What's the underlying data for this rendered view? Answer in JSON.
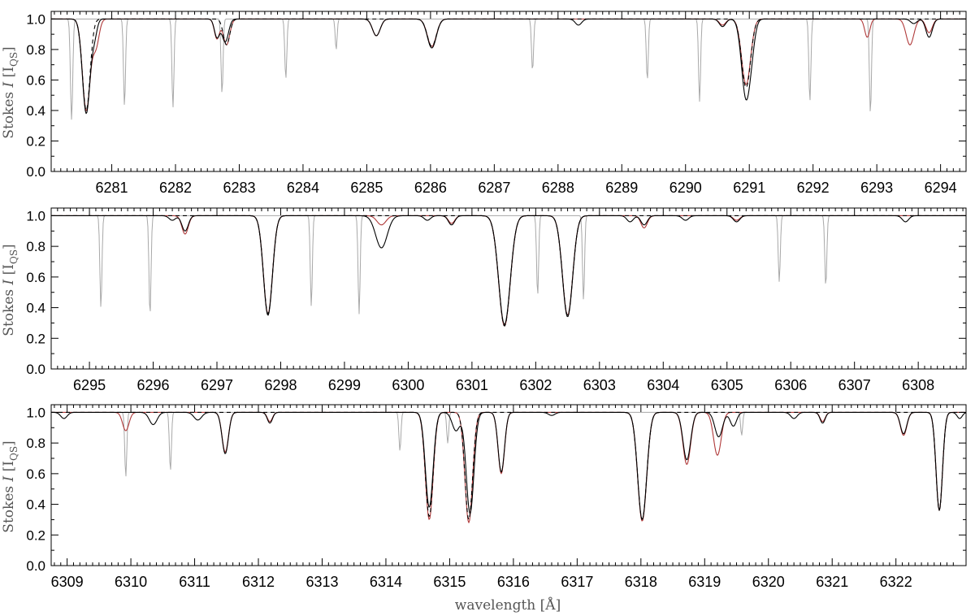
{
  "figure": {
    "xlabel": "wavelength [Å]",
    "ylabel_prefix": "Stokes ",
    "ylabel_italic": "I",
    "ylabel_suffix": " [I",
    "ylabel_sub": "QS",
    "ylabel_close": "]"
  },
  "chart_data": [
    {
      "type": "line",
      "title": "",
      "xlim": [
        6280.05,
        6294.4
      ],
      "ylim": [
        0.0,
        1.05
      ],
      "grid": false,
      "yticks": [
        "0.0",
        "0.2",
        "0.4",
        "0.6",
        "0.8",
        "1.0"
      ],
      "xticks": [
        "6281",
        "6282",
        "6283",
        "6284",
        "6285",
        "6286",
        "6287",
        "6288",
        "6289",
        "6290",
        "6291",
        "6292",
        "6293",
        "6294"
      ],
      "series": [
        {
          "color": "#000000",
          "width": 1.1,
          "dash": "",
          "lines": [
            [
              6280.6,
              0.62,
              0.06
            ],
            [
              6280.73,
              0.1,
              0.04
            ],
            [
              6282.65,
              0.12,
              0.04
            ],
            [
              6282.78,
              0.15,
              0.05
            ],
            [
              6285.15,
              0.11,
              0.06
            ],
            [
              6286.02,
              0.19,
              0.07
            ],
            [
              6288.32,
              0.04,
              0.05
            ],
            [
              6290.58,
              0.05,
              0.05
            ],
            [
              6290.95,
              0.52,
              0.07
            ],
            [
              6291.05,
              0.08,
              0.05
            ],
            [
              6293.58,
              0.03,
              0.05
            ],
            [
              6293.82,
              0.12,
              0.05
            ]
          ]
        },
        {
          "color": "#b03a3a",
          "width": 1.1,
          "dash": "",
          "lines": [
            [
              6280.6,
              0.6,
              0.06
            ],
            [
              6280.75,
              0.18,
              0.05
            ],
            [
              6282.65,
              0.13,
              0.04
            ],
            [
              6282.8,
              0.17,
              0.05
            ],
            [
              6285.15,
              0.11,
              0.06
            ],
            [
              6286.02,
              0.18,
              0.07
            ],
            [
              6290.58,
              0.04,
              0.05
            ],
            [
              6290.95,
              0.43,
              0.07
            ],
            [
              6292.85,
              0.12,
              0.04
            ],
            [
              6293.52,
              0.17,
              0.06
            ],
            [
              6293.82,
              0.09,
              0.05
            ]
          ]
        },
        {
          "color": "#000000",
          "width": 1.1,
          "dash": "5,4",
          "lines": [
            [
              6280.6,
              0.6,
              0.06
            ],
            [
              6282.8,
              0.17,
              0.05
            ],
            [
              6286.02,
              0.18,
              0.07
            ],
            [
              6290.95,
              0.45,
              0.07
            ]
          ]
        },
        {
          "color": "#a8a8a8",
          "width": 1.0,
          "dash": "",
          "lines": [
            [
              6280.37,
              0.66,
              0.018
            ],
            [
              6281.2,
              0.57,
              0.016
            ],
            [
              6281.96,
              0.58,
              0.016
            ],
            [
              6282.73,
              0.49,
              0.016
            ],
            [
              6283.73,
              0.39,
              0.016
            ],
            [
              6284.52,
              0.2,
              0.015
            ],
            [
              6287.6,
              0.34,
              0.016
            ],
            [
              6289.4,
              0.4,
              0.016
            ],
            [
              6290.22,
              0.54,
              0.016
            ],
            [
              6291.95,
              0.54,
              0.016
            ],
            [
              6292.9,
              0.62,
              0.016
            ]
          ]
        }
      ]
    },
    {
      "type": "line",
      "title": "",
      "xlim": [
        6294.4,
        6308.75
      ],
      "ylim": [
        0.0,
        1.05
      ],
      "grid": false,
      "yticks": [
        "0.0",
        "0.2",
        "0.4",
        "0.6",
        "0.8",
        "1.0"
      ],
      "xticks": [
        "6295",
        "6296",
        "6297",
        "6298",
        "6299",
        "6300",
        "6301",
        "6302",
        "6303",
        "6304",
        "6305",
        "6306",
        "6307",
        "6308"
      ],
      "series": [
        {
          "color": "#000000",
          "width": 1.1,
          "dash": "",
          "lines": [
            [
              6296.3,
              0.03,
              0.05
            ],
            [
              6296.5,
              0.1,
              0.05
            ],
            [
              6297.8,
              0.65,
              0.07
            ],
            [
              6299.58,
              0.21,
              0.09
            ],
            [
              6300.3,
              0.03,
              0.05
            ],
            [
              6300.68,
              0.06,
              0.05
            ],
            [
              6301.51,
              0.71,
              0.09
            ],
            [
              6302.5,
              0.66,
              0.08
            ],
            [
              6303.48,
              0.04,
              0.05
            ],
            [
              6303.7,
              0.06,
              0.05
            ],
            [
              6304.35,
              0.03,
              0.05
            ],
            [
              6305.15,
              0.04,
              0.05
            ],
            [
              6307.8,
              0.04,
              0.05
            ]
          ]
        },
        {
          "color": "#b03a3a",
          "width": 1.1,
          "dash": "",
          "lines": [
            [
              6296.5,
              0.12,
              0.05
            ],
            [
              6297.8,
              0.64,
              0.07
            ],
            [
              6299.58,
              0.06,
              0.07
            ],
            [
              6300.68,
              0.05,
              0.05
            ],
            [
              6301.51,
              0.72,
              0.09
            ],
            [
              6302.5,
              0.65,
              0.08
            ],
            [
              6303.7,
              0.08,
              0.05
            ],
            [
              6305.15,
              0.03,
              0.05
            ]
          ]
        },
        {
          "color": "#000000",
          "width": 1.1,
          "dash": "5,4",
          "lines": [
            [
              6297.8,
              0.64,
              0.07
            ],
            [
              6301.51,
              0.72,
              0.09
            ],
            [
              6302.5,
              0.65,
              0.08
            ]
          ]
        },
        {
          "color": "#a8a8a8",
          "width": 1.0,
          "dash": "",
          "lines": [
            [
              6295.18,
              0.6,
              0.016
            ],
            [
              6295.95,
              0.65,
              0.016
            ],
            [
              6298.48,
              0.59,
              0.016
            ],
            [
              6299.23,
              0.64,
              0.016
            ],
            [
              6302.03,
              0.52,
              0.016
            ],
            [
              6302.75,
              0.55,
              0.016
            ],
            [
              6305.82,
              0.43,
              0.016
            ],
            [
              6306.55,
              0.46,
              0.016
            ]
          ]
        }
      ]
    },
    {
      "type": "line",
      "title": "",
      "xlim": [
        6308.75,
        6323.1
      ],
      "ylim": [
        0.0,
        1.05
      ],
      "grid": false,
      "yticks": [
        "0.0",
        "0.2",
        "0.4",
        "0.6",
        "0.8",
        "1.0"
      ],
      "xticks": [
        "6309",
        "6310",
        "6311",
        "6312",
        "6313",
        "6314",
        "6315",
        "6316",
        "6317",
        "6318",
        "6319",
        "6320",
        "6321",
        "6322"
      ],
      "series": [
        {
          "color": "#000000",
          "width": 1.1,
          "dash": "",
          "lines": [
            [
              6308.95,
              0.04,
              0.05
            ],
            [
              6310.35,
              0.08,
              0.06
            ],
            [
              6311.05,
              0.05,
              0.06
            ],
            [
              6311.48,
              0.27,
              0.05
            ],
            [
              6312.18,
              0.07,
              0.04
            ],
            [
              6314.68,
              0.62,
              0.06
            ],
            [
              6315.32,
              0.66,
              0.06
            ],
            [
              6315.1,
              0.12,
              0.06
            ],
            [
              6315.81,
              0.39,
              0.05
            ],
            [
              6316.6,
              0.02,
              0.05
            ],
            [
              6318.02,
              0.7,
              0.07
            ],
            [
              6318.72,
              0.31,
              0.06
            ],
            [
              6319.22,
              0.16,
              0.06
            ],
            [
              6319.45,
              0.09,
              0.05
            ],
            [
              6320.4,
              0.04,
              0.05
            ],
            [
              6320.85,
              0.07,
              0.04
            ],
            [
              6322.12,
              0.14,
              0.05
            ],
            [
              6322.68,
              0.64,
              0.05
            ],
            [
              6323.0,
              0.04,
              0.04
            ]
          ]
        },
        {
          "color": "#b03a3a",
          "width": 1.1,
          "dash": "",
          "lines": [
            [
              6309.92,
              0.12,
              0.05
            ],
            [
              6311.48,
              0.26,
              0.05
            ],
            [
              6312.18,
              0.06,
              0.04
            ],
            [
              6314.68,
              0.7,
              0.06
            ],
            [
              6315.3,
              0.72,
              0.06
            ],
            [
              6315.81,
              0.4,
              0.05
            ],
            [
              6318.02,
              0.71,
              0.07
            ],
            [
              6318.72,
              0.34,
              0.06
            ],
            [
              6319.2,
              0.28,
              0.06
            ],
            [
              6320.85,
              0.06,
              0.04
            ],
            [
              6322.12,
              0.15,
              0.05
            ],
            [
              6322.68,
              0.64,
              0.05
            ]
          ]
        },
        {
          "color": "#000000",
          "width": 1.1,
          "dash": "5,4",
          "lines": [
            [
              6314.68,
              0.68,
              0.06
            ],
            [
              6315.3,
              0.7,
              0.06
            ],
            [
              6318.02,
              0.7,
              0.07
            ],
            [
              6322.68,
              0.64,
              0.05
            ]
          ]
        },
        {
          "color": "#a8a8a8",
          "width": 1.0,
          "dash": "",
          "lines": [
            [
              6309.92,
              0.42,
              0.016
            ],
            [
              6310.62,
              0.38,
              0.016
            ],
            [
              6314.22,
              0.25,
              0.016
            ],
            [
              6314.97,
              0.2,
              0.016
            ],
            [
              6319.58,
              0.15,
              0.016
            ]
          ]
        }
      ]
    }
  ]
}
